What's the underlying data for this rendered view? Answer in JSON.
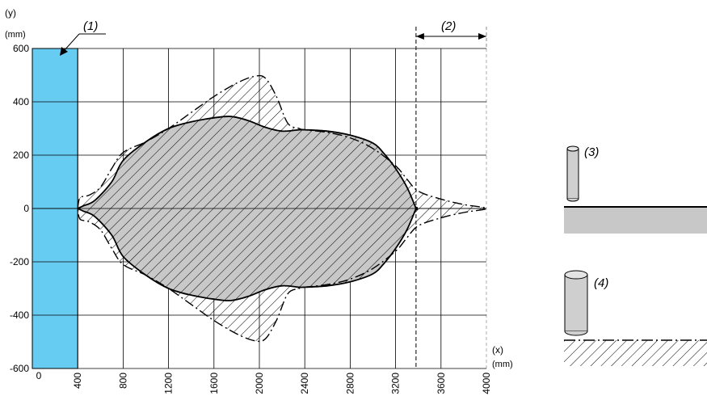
{
  "figure": {
    "y_axis": {
      "label": "(y)",
      "unit": "(mm)"
    },
    "x_axis": {
      "label": "(x)",
      "unit": "(mm)"
    },
    "callouts": {
      "zone": "(1)",
      "range": "(2)",
      "small_object": "(3)",
      "large_object": "(4)"
    },
    "colors": {
      "zone_fill": "#66ccf2",
      "area_fill": "#c8c8c8",
      "grid": "#000000",
      "hatch": "#000000"
    },
    "legend": {
      "small_object": {
        "symbol": "cylinder-small-icon",
        "surface": "gray-surface-bar"
      },
      "large_object": {
        "symbol": "cylinder-large-icon",
        "surface": "hatched-surface-bar"
      }
    }
  },
  "chart_data": {
    "type": "area",
    "xlim": [
      0,
      4000
    ],
    "ylim": [
      -600,
      600
    ],
    "x_ticks": [
      "0",
      "400",
      "800",
      "1200",
      "1600",
      "2000",
      "2400",
      "2800",
      "3200",
      "3600",
      "4000"
    ],
    "y_ticks": [
      "600",
      "400",
      "200",
      "0",
      "-200",
      "-400",
      "-600"
    ],
    "grid": true,
    "zone_x_range": [
      0,
      400
    ],
    "range_x_range": [
      3380,
      4000
    ],
    "series": [
      {
        "x": [
          400,
          450,
          550,
          700,
          800,
          1000,
          1200,
          1400,
          1600,
          1750,
          1900,
          2050,
          2200,
          2350,
          2400,
          2600,
          2800,
          3000,
          3100,
          3200,
          3300,
          3380,
          3380,
          3300,
          3200,
          3100,
          3000,
          2800,
          2600,
          2400,
          2350,
          2200,
          2050,
          1900,
          1750,
          1600,
          1400,
          1200,
          1000,
          800,
          700,
          550,
          450,
          400
        ],
        "y": [
          0,
          10,
          30,
          100,
          180,
          250,
          300,
          325,
          340,
          345,
          330,
          305,
          290,
          295,
          295,
          290,
          275,
          245,
          205,
          150,
          80,
          0,
          0,
          -80,
          -150,
          -205,
          -245,
          -275,
          -290,
          -295,
          -295,
          -290,
          -305,
          -330,
          -345,
          -340,
          -325,
          -300,
          -250,
          -180,
          -100,
          -30,
          -10,
          0
        ]
      },
      {
        "x": [
          400,
          420,
          500,
          600,
          700,
          800,
          1000,
          1200,
          1400,
          1600,
          1800,
          1950,
          2050,
          2150,
          2250,
          2350,
          2400,
          2600,
          2800,
          3000,
          3200,
          3300,
          3400,
          3600,
          3800,
          4000,
          3800,
          3600,
          3400,
          3300,
          3200,
          3000,
          2800,
          2600,
          2400,
          2350,
          2250,
          2150,
          2050,
          1950,
          1800,
          1600,
          1400,
          1200,
          1000,
          800,
          700,
          600,
          500,
          420,
          400
        ],
        "y": [
          0,
          40,
          50,
          80,
          150,
          210,
          250,
          300,
          360,
          420,
          470,
          495,
          490,
          420,
          320,
          300,
          295,
          285,
          265,
          225,
          160,
          110,
          65,
          35,
          15,
          0,
          -15,
          -35,
          -65,
          -110,
          -160,
          -225,
          -265,
          -285,
          -295,
          -300,
          -320,
          -420,
          -490,
          -495,
          -470,
          -420,
          -360,
          -300,
          -250,
          -210,
          -150,
          -80,
          -50,
          -40,
          0
        ]
      }
    ]
  }
}
